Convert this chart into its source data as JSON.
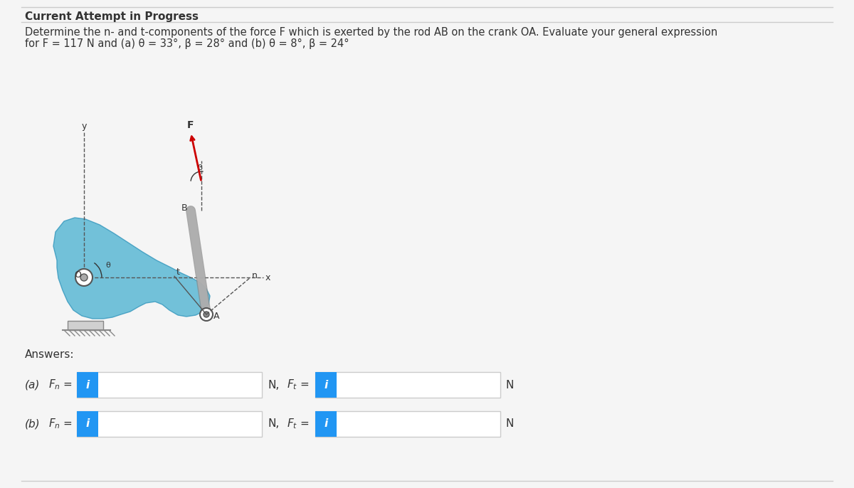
{
  "background_color": "#f5f5f5",
  "title": "Current Attempt in Progress",
  "title_fontsize": 11,
  "problem_text_line1": "Determine the n- and t-components of the force F which is exerted by the rod AB on the crank OA. Evaluate your general expression",
  "problem_text_line2": "for F = 117 N and (a) θ = 33°, β = 28° and (b) θ = 8°, β = 24°",
  "answers_label": "Answers:",
  "row_a_label": "(a)",
  "row_b_label": "(b)",
  "fn_label": "Fₙ =",
  "ft_label": "Fₜ =",
  "N_label": "N,",
  "N_end": "N",
  "box_bg": "#ffffff",
  "box_border": "#cccccc",
  "icon_bg": "#2196f3",
  "icon_text": "i",
  "icon_text_color": "#ffffff",
  "text_color": "#333333",
  "line_color": "#cccccc",
  "diagram_bg": "#87ceeb",
  "crank_color": "#5bb8d4",
  "rod_color": "#b0b0b0",
  "rod_dark": "#888888",
  "force_arrow_color": "#cc0000",
  "axis_dash_color": "#555555",
  "axis_label_color": "#333333"
}
